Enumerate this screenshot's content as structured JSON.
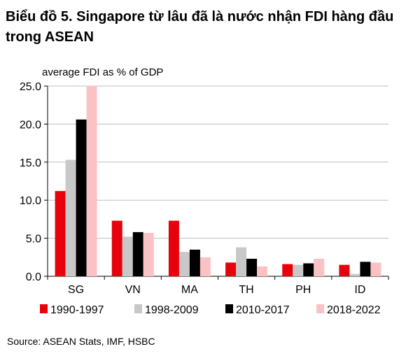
{
  "title": "Biểu đồ 5. Singapore từ lâu đã là nước nhận FDI hàng đầu trong ASEAN",
  "source": "Source: ASEAN Stats, IMF, HSBC",
  "chart_data": {
    "type": "bar",
    "ylabel": "average FDI as % of GDP",
    "xlabel": "",
    "ylim": [
      0,
      25
    ],
    "yticks": [
      "0.0",
      "5.0",
      "10.0",
      "15.0",
      "20.0",
      "25.0"
    ],
    "grid": true,
    "legend_position": "bottom",
    "categories": [
      "SG",
      "VN",
      "MA",
      "TH",
      "PH",
      "ID"
    ],
    "series": [
      {
        "name": "1990-1997",
        "color": "#e8000d",
        "values": [
          11.2,
          7.3,
          7.3,
          1.8,
          1.6,
          1.5
        ]
      },
      {
        "name": "1998-2009",
        "color": "#c8c8c8",
        "values": [
          15.3,
          5.2,
          3.2,
          3.8,
          1.5,
          0.3
        ]
      },
      {
        "name": "2010-2017",
        "color": "#000000",
        "values": [
          20.6,
          5.8,
          3.5,
          2.3,
          1.7,
          1.9
        ]
      },
      {
        "name": "2018-2022",
        "color": "#fbc2c6",
        "values": [
          25.0,
          5.7,
          2.5,
          1.3,
          2.3,
          1.8
        ]
      }
    ]
  }
}
